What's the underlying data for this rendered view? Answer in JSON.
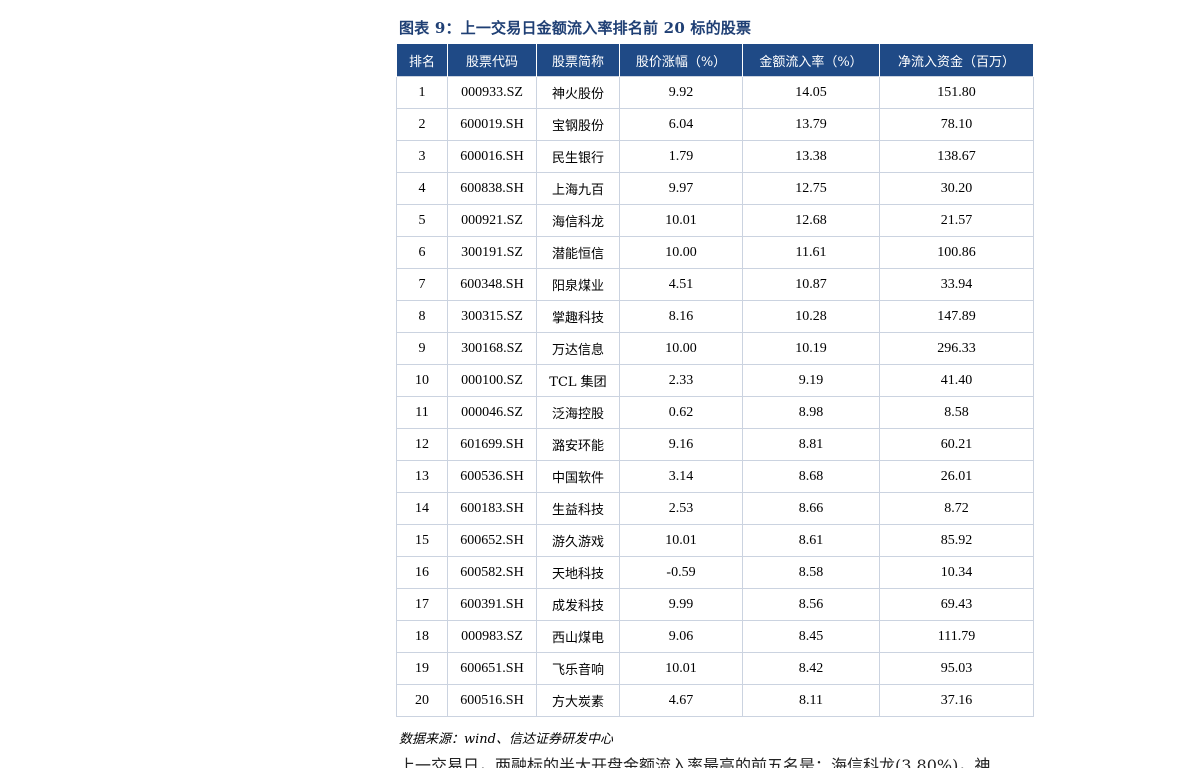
{
  "caption": "图表 9：上一交易日金额流入率排名前 20 标的股票",
  "table": {
    "headers": [
      "排名",
      "股票代码",
      "股票简称",
      "股价涨幅（%）",
      "金额流入率（%）",
      "净流入资金（百万）"
    ],
    "rows": [
      {
        "rank": "1",
        "code": "000933.SZ",
        "name": "神火股份",
        "pct": "9.92",
        "inflow_rate": "14.05",
        "net_inflow": "151.80"
      },
      {
        "rank": "2",
        "code": "600019.SH",
        "name": "宝钢股份",
        "pct": "6.04",
        "inflow_rate": "13.79",
        "net_inflow": "78.10"
      },
      {
        "rank": "3",
        "code": "600016.SH",
        "name": "民生银行",
        "pct": "1.79",
        "inflow_rate": "13.38",
        "net_inflow": "138.67"
      },
      {
        "rank": "4",
        "code": "600838.SH",
        "name": "上海九百",
        "pct": "9.97",
        "inflow_rate": "12.75",
        "net_inflow": "30.20"
      },
      {
        "rank": "5",
        "code": "000921.SZ",
        "name": "海信科龙",
        "pct": "10.01",
        "inflow_rate": "12.68",
        "net_inflow": "21.57"
      },
      {
        "rank": "6",
        "code": "300191.SZ",
        "name": "潜能恒信",
        "pct": "10.00",
        "inflow_rate": "11.61",
        "net_inflow": "100.86"
      },
      {
        "rank": "7",
        "code": "600348.SH",
        "name": "阳泉煤业",
        "pct": "4.51",
        "inflow_rate": "10.87",
        "net_inflow": "33.94"
      },
      {
        "rank": "8",
        "code": "300315.SZ",
        "name": "掌趣科技",
        "pct": "8.16",
        "inflow_rate": "10.28",
        "net_inflow": "147.89"
      },
      {
        "rank": "9",
        "code": "300168.SZ",
        "name": "万达信息",
        "pct": "10.00",
        "inflow_rate": "10.19",
        "net_inflow": "296.33"
      },
      {
        "rank": "10",
        "code": "000100.SZ",
        "name": "TCL 集团",
        "pct": "2.33",
        "inflow_rate": "9.19",
        "net_inflow": "41.40"
      },
      {
        "rank": "11",
        "code": "000046.SZ",
        "name": "泛海控股",
        "pct": "0.62",
        "inflow_rate": "8.98",
        "net_inflow": "8.58"
      },
      {
        "rank": "12",
        "code": "601699.SH",
        "name": "潞安环能",
        "pct": "9.16",
        "inflow_rate": "8.81",
        "net_inflow": "60.21"
      },
      {
        "rank": "13",
        "code": "600536.SH",
        "name": "中国软件",
        "pct": "3.14",
        "inflow_rate": "8.68",
        "net_inflow": "26.01"
      },
      {
        "rank": "14",
        "code": "600183.SH",
        "name": "生益科技",
        "pct": "2.53",
        "inflow_rate": "8.66",
        "net_inflow": "8.72"
      },
      {
        "rank": "15",
        "code": "600652.SH",
        "name": "游久游戏",
        "pct": "10.01",
        "inflow_rate": "8.61",
        "net_inflow": "85.92"
      },
      {
        "rank": "16",
        "code": "600582.SH",
        "name": "天地科技",
        "pct": "-0.59",
        "inflow_rate": "8.58",
        "net_inflow": "10.34"
      },
      {
        "rank": "17",
        "code": "600391.SH",
        "name": "成发科技",
        "pct": "9.99",
        "inflow_rate": "8.56",
        "net_inflow": "69.43"
      },
      {
        "rank": "18",
        "code": "000983.SZ",
        "name": "西山煤电",
        "pct": "9.06",
        "inflow_rate": "8.45",
        "net_inflow": "111.79"
      },
      {
        "rank": "19",
        "code": "600651.SH",
        "name": "飞乐音响",
        "pct": "10.01",
        "inflow_rate": "8.42",
        "net_inflow": "95.03"
      },
      {
        "rank": "20",
        "code": "600516.SH",
        "name": "方大炭素",
        "pct": "4.67",
        "inflow_rate": "8.11",
        "net_inflow": "37.16"
      }
    ]
  },
  "source": "数据来源：wind、信达证券研发中心",
  "body_text": "上一交易日，两融标的半大开盘金额流入率最高的前五名是：海信科龙(3.80%)，神"
}
